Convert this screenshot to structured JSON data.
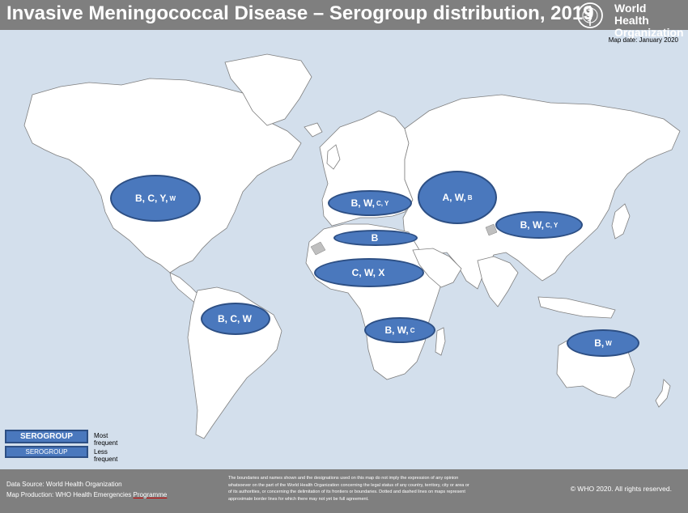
{
  "header": {
    "title": "Invasive Meningococcal Disease – Serogroup distribution, 2019",
    "logo_lines": [
      "World Health",
      "Organization"
    ]
  },
  "map_date": "Map date: January 2020",
  "bubbles": [
    {
      "id": "north-america",
      "major": "B, C, Y,",
      "minor": "W"
    },
    {
      "id": "europe",
      "major": "B, W,",
      "minor": "C, Y"
    },
    {
      "id": "russia",
      "major": "A, W,",
      "minor": "B"
    },
    {
      "id": "east-asia",
      "major": "B, W,",
      "minor": "C, Y"
    },
    {
      "id": "north-africa",
      "major": "B",
      "minor": ""
    },
    {
      "id": "west-africa",
      "major": "C, W, X",
      "minor": ""
    },
    {
      "id": "south-america",
      "major": "B, C, W",
      "minor": ""
    },
    {
      "id": "southern-africa",
      "major": "B, W,",
      "minor": "C"
    },
    {
      "id": "australia",
      "major": "B,",
      "minor": "W"
    }
  ],
  "legend": {
    "most": {
      "box": "SEROGROUP",
      "label": "Most frequent"
    },
    "less": {
      "box": "SEROGROUP",
      "label": "Less frequent"
    }
  },
  "footer": {
    "source": "Data Source: World Health Organization",
    "production_prefix": "Map Production: WHO Health Emergencies ",
    "production_underlined": "Programme",
    "disclaimer": "The boundaries and names shown and the designations used on this map do not imply the expression of any opinion whatsoever on the part of the World Health Organization concerning the legal status of any country, territory, city or area or of its authorities, or concerning the delimitation of its frontiers or boundaries. Dotted and dashed lines on maps represent approximate border lines for which there may not yet be full agreement.",
    "copyright": "© WHO 2020. All rights reserved."
  },
  "colors": {
    "ocean": "#d3dfec",
    "land": "#ffffff",
    "bubble_fill": "#4a78bd",
    "bubble_border": "#2d4f84",
    "bar": "#7f7f7f"
  }
}
